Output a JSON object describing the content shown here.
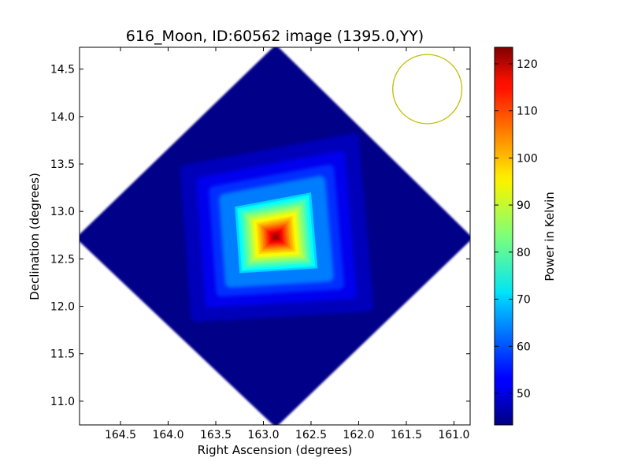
{
  "chart_data": {
    "type": "heatmap",
    "title": "616_Moon, ID:60562 image (1395.0,YY)",
    "xlabel": "Right Ascension (degrees)",
    "ylabel": "Declination (degrees)",
    "xlim": [
      164.93,
      160.83
    ],
    "ylim": [
      10.75,
      14.73
    ],
    "x_ticks": [
      164.5,
      164.0,
      163.5,
      163.0,
      162.5,
      162.0,
      161.5,
      161.0
    ],
    "x_tick_labels": [
      "164.5",
      "164.0",
      "163.5",
      "163.0",
      "162.5",
      "162.0",
      "161.5",
      "161.0"
    ],
    "y_ticks": [
      11.0,
      11.5,
      12.0,
      12.5,
      13.0,
      13.5,
      14.0,
      14.5
    ],
    "y_tick_labels": [
      "11.0",
      "11.5",
      "12.0",
      "12.5",
      "13.0",
      "13.5",
      "14.0",
      "14.5"
    ],
    "colormap": "jet",
    "colorbar": {
      "label": "Power in Kelvin",
      "min": 43.3,
      "max": 123.5,
      "ticks": [
        50,
        60,
        70,
        80,
        90,
        100,
        110,
        120
      ],
      "tick_labels": [
        "50",
        "60",
        "70",
        "80",
        "90",
        "100",
        "110",
        "120"
      ]
    },
    "image": {
      "footprint_vertices_ra_dec": [
        [
          162.87,
          14.7
        ],
        [
          164.91,
          12.72
        ],
        [
          162.87,
          10.78
        ],
        [
          160.86,
          12.72
        ]
      ],
      "background_level": 44,
      "peak": {
        "ra": 162.87,
        "dec": 12.73,
        "value": 123.5
      },
      "source_square_corners_ra_dec": [
        [
          163.3,
          13.05
        ],
        [
          162.5,
          13.2
        ],
        [
          162.43,
          12.4
        ],
        [
          163.25,
          12.35
        ]
      ],
      "source_square_edge_level": 70
    },
    "beam_circle": {
      "center_ra": 161.28,
      "center_dec": 14.29,
      "radius_deg": 0.365,
      "color": "#bfbf00"
    },
    "grid": false
  }
}
